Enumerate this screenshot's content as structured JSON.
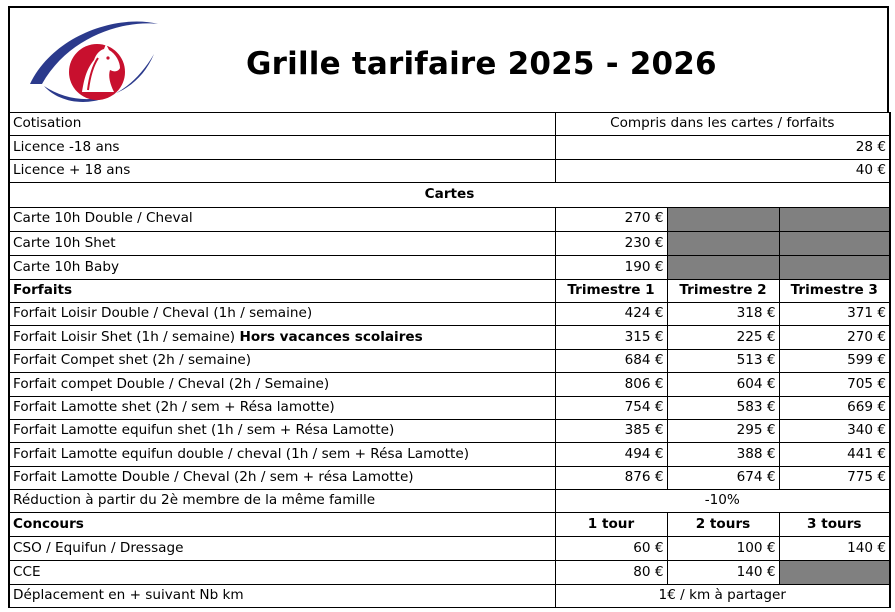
{
  "title": "Grille tarifaire 2025 - 2026",
  "logo": {
    "icon": "horse-head-eye-logo",
    "colors": {
      "blue": "#2b3a8c",
      "red": "#c8102e"
    }
  },
  "top_rows": [
    {
      "label": "Cotisation",
      "value": "Compris dans les cartes / forfaits"
    },
    {
      "label": "Licence -18 ans",
      "value": "28 €"
    },
    {
      "label": "Licence + 18 ans",
      "value": "40 €"
    }
  ],
  "cartes_heading": "Cartes",
  "cartes": [
    {
      "label": "Carte 10h Double / Cheval",
      "price": "270 €"
    },
    {
      "label": "Carte 10h Shet",
      "price": "230 €"
    },
    {
      "label": "Carte 10h Baby",
      "price": "190 €"
    }
  ],
  "forfaits_header": {
    "label": "Forfaits",
    "t1": "Trimestre 1",
    "t2": "Trimestre 2",
    "t3": "Trimestre 3"
  },
  "forfaits": [
    {
      "label": "Forfait Loisir Double / Cheval (1h / semaine)",
      "label_bold": "",
      "t1": "424 €",
      "t2": "318 €",
      "t3": "371 €"
    },
    {
      "label": "Forfait Loisir Shet (1h / semaine) ",
      "label_bold": "Hors vacances scolaires",
      "t1": "315 €",
      "t2": "225 €",
      "t3": "270 €"
    },
    {
      "label": "Forfait Compet shet (2h / semaine)",
      "label_bold": "",
      "t1": "684 €",
      "t2": "513 €",
      "t3": "599 €"
    },
    {
      "label": "Forfait compet Double / Cheval (2h / Semaine)",
      "label_bold": "",
      "t1": "806 €",
      "t2": "604 €",
      "t3": "705 €"
    },
    {
      "label": "Forfait Lamotte shet (2h / sem + Résa lamotte)",
      "label_bold": "",
      "t1": "754 €",
      "t2": "583 €",
      "t3": "669 €"
    },
    {
      "label": "Forfait Lamotte equifun shet (1h / sem + Résa Lamotte)",
      "label_bold": "",
      "t1": "385 €",
      "t2": "295 €",
      "t3": "340 €"
    },
    {
      "label": "Forfait Lamotte equifun double / cheval (1h / sem + Résa Lamotte)",
      "label_bold": "",
      "t1": "494 €",
      "t2": "388 €",
      "t3": "441 €"
    },
    {
      "label": "Forfait Lamotte Double / Cheval (2h / sem + résa Lamotte)",
      "label_bold": "",
      "t1": "876 €",
      "t2": "674 €",
      "t3": "775 €"
    }
  ],
  "reduction": {
    "label": "Réduction à partir du 2è membre de la même famille",
    "value": "-10%"
  },
  "concours_header": {
    "label": "Concours",
    "c1": "1 tour",
    "c2": "2 tours",
    "c3": "3 tours"
  },
  "concours": [
    {
      "label": "CSO / Equifun / Dressage",
      "c1": "60 €",
      "c2": "100 €",
      "c3": "140 €"
    },
    {
      "label": "CCE",
      "c1": "80 €",
      "c2": "140 €",
      "c3": ""
    }
  ],
  "deplacement": {
    "label": "Déplacement en + suivant Nb km",
    "value": "1€ / km à partager"
  }
}
